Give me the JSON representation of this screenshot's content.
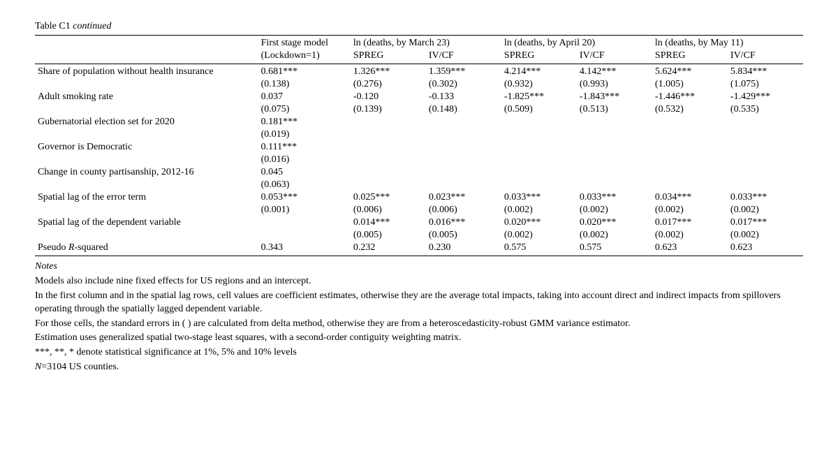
{
  "title_prefix": "Table C1 ",
  "title_suffix": "continued",
  "header": {
    "first_stage_l1": "First stage model",
    "first_stage_l2": "(Lockdown=1)",
    "g1": "ln (deaths, by March 23)",
    "g2": "ln (deaths, by April 20)",
    "g3": "ln (deaths, by May 11)",
    "spreg": "SPREG",
    "ivcf": "IV/CF"
  },
  "rows": [
    {
      "label": "Share of population without health insurance",
      "c0": "0.681***",
      "c0se": "(0.138)",
      "c1": "1.326***",
      "c1se": "(0.276)",
      "c2": "1.359***",
      "c2se": "(0.302)",
      "c3": "4.214***",
      "c3se": "(0.932)",
      "c4": "4.142***",
      "c4se": "(0.993)",
      "c5": "5.624***",
      "c5se": "(1.005)",
      "c6": "5.834***",
      "c6se": "(1.075)"
    },
    {
      "label": "Adult smoking rate",
      "c0": "0.037",
      "c0se": "(0.075)",
      "c1": "-0.120",
      "c1se": "(0.139)",
      "c2": "-0.133",
      "c2se": "(0.148)",
      "c3": "-1.825***",
      "c3se": "(0.509)",
      "c4": "-1.843***",
      "c4se": "(0.513)",
      "c5": "-1.446***",
      "c5se": "(0.532)",
      "c6": "-1.429***",
      "c6se": "(0.535)"
    },
    {
      "label": "Gubernatorial election set for 2020",
      "c0": "0.181***",
      "c0se": "(0.019)"
    },
    {
      "label": "Governor is Democratic",
      "c0": "0.111***",
      "c0se": "(0.016)"
    },
    {
      "label": "Change in county partisanship, 2012-16",
      "c0": "0.045",
      "c0se": "(0.063)"
    },
    {
      "label": "Spatial lag of the error term",
      "c0": "0.053***",
      "c0se": "(0.001)",
      "c1": "0.025***",
      "c1se": "(0.006)",
      "c2": "0.023***",
      "c2se": "(0.006)",
      "c3": "0.033***",
      "c3se": "(0.002)",
      "c4": "0.033***",
      "c4se": "(0.002)",
      "c5": "0.034***",
      "c5se": "(0.002)",
      "c6": "0.033***",
      "c6se": "(0.002)"
    },
    {
      "label": "Spatial lag of the dependent variable",
      "c0": "",
      "c0se": "",
      "c1": "0.014***",
      "c1se": "(0.005)",
      "c2": "0.016***",
      "c2se": "(0.005)",
      "c3": "0.020***",
      "c3se": "(0.002)",
      "c4": "0.020***",
      "c4se": "(0.002)",
      "c5": "0.017***",
      "c5se": "(0.002)",
      "c6": "0.017***",
      "c6se": "(0.002)"
    }
  ],
  "pseudo": {
    "label_prefix": "Pseudo ",
    "label_italic": "R",
    "label_suffix": "-squared",
    "c0": "0.343",
    "c1": "0.232",
    "c2": "0.230",
    "c3": "0.575",
    "c4": "0.575",
    "c5": "0.623",
    "c6": "0.623"
  },
  "notes": {
    "heading": "Notes",
    "n1": "Models also include nine fixed effects for US regions and an intercept.",
    "n2": "In the first column and in the spatial lag rows, cell values are coefficient estimates, otherwise they are the average total impacts, taking into account direct and indirect impacts from spillovers operating through the spatially lagged dependent variable.",
    "n3": "For those cells, the standard errors in ( ) are calculated from delta method, otherwise they are from a heteroscedasticity-robust GMM variance estimator.",
    "n4": "Estimation uses generalized spatial two-stage least squares, with a second-order contiguity weighting matrix.",
    "n5": "***, **, * denote statistical significance at 1%, 5% and 10% levels",
    "n6_prefix": "N",
    "n6_suffix": "=3104 US counties."
  }
}
